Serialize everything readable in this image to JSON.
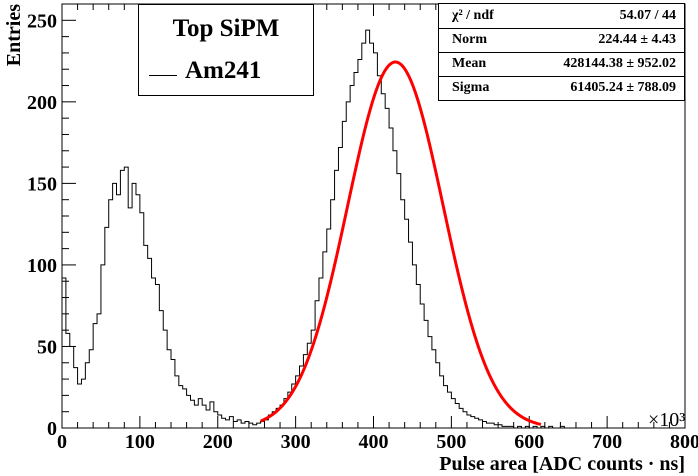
{
  "chart_data": {
    "type": "histogram",
    "title": "",
    "xlabel": "Pulse area [ADC counts · ns]",
    "ylabel": "Entries",
    "x_exponent": "×10³",
    "xlim": [
      0,
      800
    ],
    "ylim": [
      0,
      260
    ],
    "x_ticks": [
      "0",
      "100",
      "200",
      "300",
      "400",
      "500",
      "600",
      "700",
      "800"
    ],
    "y_ticks": [
      "0",
      "50",
      "100",
      "150",
      "200",
      "250"
    ],
    "bin_width": 5,
    "bin_start": 0,
    "histogram_values": [
      92,
      58,
      50,
      37,
      27,
      30,
      40,
      48,
      64,
      70,
      100,
      123,
      140,
      150,
      143,
      158,
      160,
      135,
      150,
      143,
      132,
      112,
      104,
      92,
      88,
      72,
      60,
      48,
      42,
      32,
      26,
      24,
      20,
      17,
      14,
      18,
      14,
      11,
      16,
      10,
      8,
      6,
      5,
      7,
      4,
      5,
      3,
      4,
      3,
      2,
      3,
      4,
      5,
      8,
      10,
      12,
      14,
      18,
      22,
      27,
      32,
      38,
      45,
      52,
      60,
      78,
      92,
      108,
      122,
      140,
      158,
      172,
      188,
      200,
      210,
      218,
      226,
      236,
      244,
      236,
      230,
      216,
      205,
      196,
      184,
      170,
      156,
      140,
      128,
      114,
      100,
      88,
      76,
      66,
      56,
      48,
      40,
      32,
      26,
      22,
      18,
      15,
      12,
      10,
      8,
      7,
      6,
      5,
      4,
      3,
      3,
      2,
      2,
      1,
      1,
      1,
      0,
      1,
      0,
      1,
      0,
      1,
      0,
      1,
      0,
      1,
      0,
      0,
      1,
      0
    ],
    "series": [
      {
        "name": "Am241",
        "type": "histogram",
        "color": "#000000"
      },
      {
        "name": "Gaussian fit",
        "type": "line",
        "color": "#ff0000",
        "mean_thousands": 428.14438,
        "sigma_thousands": 61.40524,
        "norm": 224.44,
        "fit_range": [
          255,
          615
        ]
      }
    ],
    "legend": {
      "title": "Top SiPM",
      "entries": [
        "Am241"
      ],
      "position": "top-left"
    },
    "stats": [
      {
        "key": "χ² / ndf",
        "value": "54.07 / 44"
      },
      {
        "key": "Norm",
        "value": "224.44  ± 4.43"
      },
      {
        "key": "Mean",
        "value": "428144.38  ± 952.02"
      },
      {
        "key": "Sigma",
        "value": "61405.24  ± 788.09"
      }
    ]
  }
}
